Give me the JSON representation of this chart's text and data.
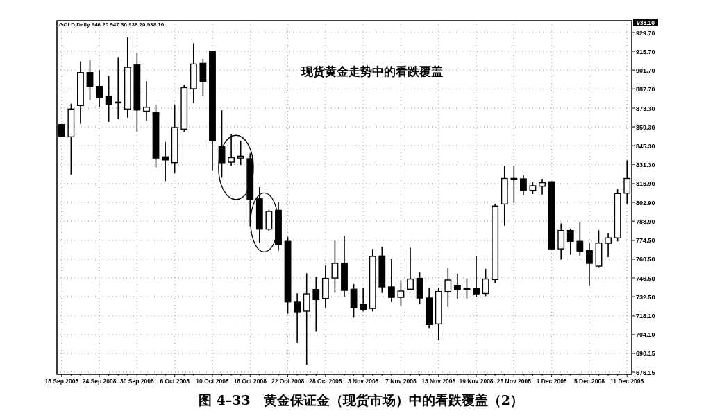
{
  "chart_data": {
    "type": "candlestick",
    "title": "图 4–33　黄金保证金（现货市场）中的看跌覆盖（2）",
    "annotations": [
      "GOLD,Daily 946.20 947.30 936.20 938.10",
      "现货黄金走势中的看跌覆盖",
      "938.10"
    ],
    "categories": [
      "18 Sep 2008",
      null,
      null,
      null,
      "24 Sep 2008",
      null,
      null,
      null,
      "30 Sep 2008",
      null,
      null,
      null,
      "6 Oct 2008",
      null,
      null,
      null,
      "10 Oct 2008",
      null,
      null,
      null,
      "16 Oct 2008",
      null,
      null,
      null,
      "22 Oct 2008",
      null,
      null,
      null,
      "28 Oct 2008",
      null,
      null,
      null,
      "3 Nov 2008",
      null,
      null,
      null,
      "7 Nov 2008",
      null,
      null,
      null,
      "13 Nov 2008",
      null,
      null,
      null,
      "19 Nov 2008",
      null,
      null,
      null,
      "25 Nov 2008",
      null,
      null,
      null,
      "1 Dec 2008",
      null,
      null,
      null,
      "5 Dec 2008",
      null,
      null,
      null,
      "11 Dec 2008"
    ],
    "ohlc": [
      [
        861.0,
        861.5,
        852.0,
        852.4
      ],
      [
        851.9,
        876.5,
        823.6,
        872.6
      ],
      [
        875.2,
        908.1,
        861.5,
        899.8
      ],
      [
        899.8,
        908.8,
        879.1,
        889.5
      ],
      [
        889.5,
        901.6,
        874.3,
        881.4
      ],
      [
        882.1,
        897.3,
        863.1,
        876.2
      ],
      [
        877.8,
        911.4,
        865.0,
        877.4
      ],
      [
        872.6,
        926.2,
        866.2,
        903.8
      ],
      [
        905.5,
        914.5,
        855.8,
        871.9
      ],
      [
        871.0,
        893.3,
        864.0,
        874.0
      ],
      [
        870.0,
        875.7,
        829.1,
        836.0
      ],
      [
        836.9,
        848.1,
        818.8,
        834.6
      ],
      [
        832.6,
        875.7,
        824.8,
        858.8
      ],
      [
        857.6,
        890.7,
        855.8,
        888.6
      ],
      [
        887.8,
        921.7,
        877.1,
        906.2
      ],
      [
        906.7,
        910.2,
        882.2,
        893.3
      ],
      [
        915.7,
        916.0,
        826.5,
        848.9
      ],
      [
        844.6,
        871.7,
        821.3,
        832.5
      ],
      [
        832.9,
        854.1,
        829.8,
        836.3
      ],
      [
        836.0,
        848.9,
        830.8,
        837.4
      ],
      [
        835.5,
        839.5,
        785.0,
        805.0
      ],
      [
        805.7,
        814.3,
        772.6,
        782.9
      ],
      [
        782.9,
        797.5,
        781.5,
        796.2
      ],
      [
        797.0,
        803.1,
        766.9,
        771.2
      ],
      [
        773.8,
        777.2,
        719.8,
        728.6
      ],
      [
        728.4,
        735.0,
        697.9,
        721.2
      ],
      [
        721.7,
        750.0,
        681.8,
        734.6
      ],
      [
        737.9,
        747.4,
        706.5,
        730.3
      ],
      [
        731.2,
        755.7,
        724.1,
        746.2
      ],
      [
        746.5,
        774.3,
        735.5,
        757.4
      ],
      [
        757.4,
        777.8,
        732.4,
        737.2
      ],
      [
        738.1,
        741.9,
        716.9,
        724.3
      ],
      [
        726.9,
        738.8,
        721.5,
        722.9
      ],
      [
        723.7,
        768.1,
        721.5,
        762.6
      ],
      [
        762.9,
        769.8,
        735.3,
        739.8
      ],
      [
        739.8,
        760.5,
        728.6,
        732.0
      ],
      [
        732.0,
        744.8,
        725.5,
        736.7
      ],
      [
        738.1,
        769.1,
        737.5,
        745.7
      ],
      [
        746.2,
        750.8,
        726.9,
        731.5
      ],
      [
        731.5,
        739.3,
        709.1,
        711.7
      ],
      [
        712.2,
        739.3,
        700.0,
        736.3
      ],
      [
        736.3,
        753.9,
        725.0,
        745.0
      ],
      [
        741.0,
        749.6,
        730.7,
        737.6
      ],
      [
        738.7,
        746.2,
        731.2,
        738.4
      ],
      [
        738.4,
        762.9,
        732.0,
        734.6
      ],
      [
        734.9,
        753.4,
        732.9,
        745.7
      ],
      [
        745.3,
        801.7,
        742.7,
        800.2
      ],
      [
        801.7,
        830.0,
        785.5,
        820.8
      ],
      [
        820.8,
        830.5,
        802.6,
        820.5
      ],
      [
        820.5,
        823.1,
        808.3,
        811.9
      ],
      [
        811.9,
        817.9,
        809.1,
        815.3
      ],
      [
        815.0,
        820.5,
        808.8,
        817.6
      ],
      [
        818.3,
        818.5,
        767.5,
        768.2
      ],
      [
        768.2,
        787.2,
        760.3,
        781.9
      ],
      [
        781.9,
        783.2,
        763.9,
        773.8
      ],
      [
        773.8,
        788.4,
        762.6,
        766.5
      ],
      [
        766.9,
        772.6,
        741.0,
        757.4
      ],
      [
        755.3,
        782.1,
        754.5,
        772.5
      ],
      [
        772.4,
        780.1,
        762.0,
        776.4
      ],
      [
        776.4,
        812.9,
        773.8,
        809.5
      ],
      [
        809.8,
        834.3,
        801.7,
        820.8
      ]
    ],
    "ylim": [
      674.6,
      938.5
    ],
    "yticks": [
      {
        "value": 676.15,
        "label": "676.15"
      },
      {
        "value": 690.15,
        "label": "690.15"
      },
      {
        "value": 704.1,
        "label": "704.10"
      },
      {
        "value": 718.1,
        "label": "718.10"
      },
      {
        "value": 732.5,
        "label": "732.50"
      },
      {
        "value": 746.5,
        "label": "746.50"
      },
      {
        "value": 760.5,
        "label": "760.50"
      },
      {
        "value": 774.5,
        "label": "774.50"
      },
      {
        "value": 788.9,
        "label": "788.90"
      },
      {
        "value": 802.9,
        "label": "802.90"
      },
      {
        "value": 816.9,
        "label": "816.90"
      },
      {
        "value": 831.3,
        "label": "831.30"
      },
      {
        "value": 845.3,
        "label": "845.30"
      },
      {
        "value": 859.3,
        "label": "859.30"
      },
      {
        "value": 873.3,
        "label": "873.30"
      },
      {
        "value": 887.7,
        "label": "887.70"
      },
      {
        "value": 901.7,
        "label": "901.70"
      },
      {
        "value": 915.7,
        "label": "915.70"
      },
      {
        "value": 929.7,
        "label": "929.70"
      }
    ],
    "grid": true
  }
}
